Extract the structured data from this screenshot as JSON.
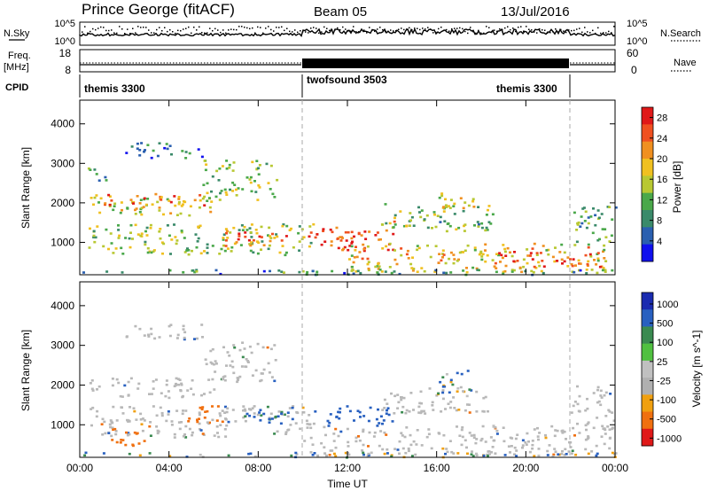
{
  "header": {
    "station": "Prince George (fitACF)",
    "beam": "Beam 05",
    "date": "13/Jul/2016"
  },
  "left_labels": {
    "nsky": "N.Sky",
    "freq": "Freq.",
    "freq_unit": "[MHz]",
    "cpid": "CPID"
  },
  "right_labels": {
    "nsearch": "N.Search",
    "nave": "Nave"
  },
  "noise_panel": {
    "left_ticks": [
      "10^5",
      "10^0"
    ],
    "right_ticks": [
      "10^5",
      "10^0"
    ]
  },
  "freq_panel": {
    "left_ticks": [
      "18",
      "8"
    ],
    "right_ticks": [
      "60",
      "0"
    ]
  },
  "cpid_segments": [
    {
      "label": "themis 3300",
      "start_h": 0,
      "end_h": 10
    },
    {
      "label": "twofsound 3503",
      "start_h": 10,
      "end_h": 22
    },
    {
      "label": "themis 3300",
      "start_h": 22,
      "end_h": 24
    }
  ],
  "colors": {
    "power_scale": [
      "#1010ee",
      "#2a5fb0",
      "#3a8a6a",
      "#4aa84a",
      "#b8c832",
      "#f0c020",
      "#f09020",
      "#f05020",
      "#e01818"
    ],
    "velocity_scale": [
      "#1a2bb0",
      "#2860c0",
      "#3a8a50",
      "#50c040",
      "#c0c0c0",
      "#b0b0b0",
      "#f0a010",
      "#f07010",
      "#e01818"
    ],
    "ground_scatter": "#b8b8b8"
  },
  "chart_data": [
    {
      "type": "heatmap",
      "title": "",
      "xlabel": "Time UT",
      "ylabel": "Slant Range [km]",
      "xlim": [
        0,
        24
      ],
      "ylim": [
        180,
        4600
      ],
      "x_ticks": [
        "00:00",
        "04:00",
        "08:00",
        "12:00",
        "16:00",
        "20:00",
        "00:00"
      ],
      "y_ticks": [
        "1000",
        "2000",
        "3000",
        "4000"
      ],
      "colorbar": {
        "label": "Power [dB]",
        "ticks": [
          "4",
          "8",
          "12",
          "16",
          "20",
          "24",
          "28"
        ],
        "range": [
          0,
          30
        ]
      },
      "regions": [
        {
          "t0": 0.2,
          "t1": 6.0,
          "r0": 1700,
          "r1": 2200,
          "v": 16
        },
        {
          "t0": 0.5,
          "t1": 6.0,
          "r0": 1950,
          "r1": 2250,
          "v": 22
        },
        {
          "t0": 5.5,
          "t1": 8.8,
          "r0": 2100,
          "r1": 3100,
          "v": 14
        },
        {
          "t0": 2.0,
          "t1": 5.5,
          "r0": 3150,
          "r1": 3550,
          "v": 8
        },
        {
          "t0": 0.3,
          "t1": 1.2,
          "r0": 2500,
          "r1": 2900,
          "v": 10
        },
        {
          "t0": 0.3,
          "t1": 10.5,
          "r0": 700,
          "r1": 1500,
          "v": 14
        },
        {
          "t0": 6.5,
          "t1": 9.5,
          "r0": 900,
          "r1": 1350,
          "v": 24
        },
        {
          "t0": 10.0,
          "t1": 14.0,
          "r0": 800,
          "r1": 1400,
          "v": 26
        },
        {
          "t0": 11.0,
          "t1": 12.5,
          "r0": 1000,
          "r1": 1350,
          "v": 28
        },
        {
          "t0": 12.0,
          "t1": 24.0,
          "r0": 250,
          "r1": 1000,
          "v": 18
        },
        {
          "t0": 18.5,
          "t1": 23.5,
          "r0": 400,
          "r1": 800,
          "v": 26
        },
        {
          "t0": 13.5,
          "t1": 18.5,
          "r0": 1300,
          "r1": 2000,
          "v": 12
        },
        {
          "t0": 13.8,
          "t1": 15.0,
          "r0": 1400,
          "r1": 1600,
          "v": 24
        },
        {
          "t0": 16.0,
          "t1": 18.0,
          "r0": 1800,
          "r1": 2300,
          "v": 16
        },
        {
          "t0": 22.0,
          "t1": 24.0,
          "r0": 1000,
          "r1": 2000,
          "v": 10
        },
        {
          "t0": 0.0,
          "t1": 24.0,
          "r0": 200,
          "r1": 330,
          "v": 8
        }
      ]
    },
    {
      "type": "heatmap",
      "title": "",
      "xlabel": "Time UT",
      "ylabel": "Slant Range [km]",
      "xlim": [
        0,
        24
      ],
      "ylim": [
        180,
        4600
      ],
      "x_ticks": [
        "00:00",
        "04:00",
        "08:00",
        "12:00",
        "16:00",
        "20:00",
        "00:00"
      ],
      "y_ticks": [
        "1000",
        "2000",
        "3000",
        "4000"
      ],
      "colorbar": {
        "label": "Velocity [m s^-1]",
        "ticks": [
          "1000",
          "500",
          "100",
          "25",
          "-25",
          "-100",
          "-500",
          "-1000"
        ],
        "range": [
          -1000,
          1000
        ]
      },
      "regions": [
        {
          "t0": 0.2,
          "t1": 6.0,
          "r0": 1700,
          "r1": 2200,
          "v": 0,
          "gs": true
        },
        {
          "t0": 5.5,
          "t1": 8.8,
          "r0": 2100,
          "r1": 3100,
          "v": 0,
          "gs": true
        },
        {
          "t0": 2.0,
          "t1": 5.5,
          "r0": 3150,
          "r1": 3550,
          "v": 0,
          "gs": true
        },
        {
          "t0": 0.3,
          "t1": 10.5,
          "r0": 700,
          "r1": 1500,
          "v": 0,
          "gs": true
        },
        {
          "t0": 1.3,
          "t1": 3.2,
          "r0": 500,
          "r1": 1000,
          "v": -300
        },
        {
          "t0": 4.5,
          "t1": 6.5,
          "r0": 1100,
          "r1": 1500,
          "v": -300
        },
        {
          "t0": 6.5,
          "t1": 9.5,
          "r0": 1050,
          "r1": 1500,
          "v": 150
        },
        {
          "t0": 10.0,
          "t1": 24.0,
          "r0": 250,
          "r1": 1000,
          "v": 0,
          "gs": true
        },
        {
          "t0": 10.5,
          "t1": 14.0,
          "r0": 1000,
          "r1": 1500,
          "v": 300
        },
        {
          "t0": 13.5,
          "t1": 18.5,
          "r0": 1300,
          "r1": 2000,
          "v": 0,
          "gs": true
        },
        {
          "t0": 16.0,
          "t1": 17.5,
          "r0": 1700,
          "r1": 2400,
          "v": 80
        },
        {
          "t0": 0.0,
          "t1": 24.0,
          "r0": 200,
          "r1": 330,
          "v": 60
        },
        {
          "t0": 22.0,
          "t1": 24.0,
          "r0": 900,
          "r1": 2000,
          "v": 0,
          "gs": true
        }
      ]
    }
  ]
}
